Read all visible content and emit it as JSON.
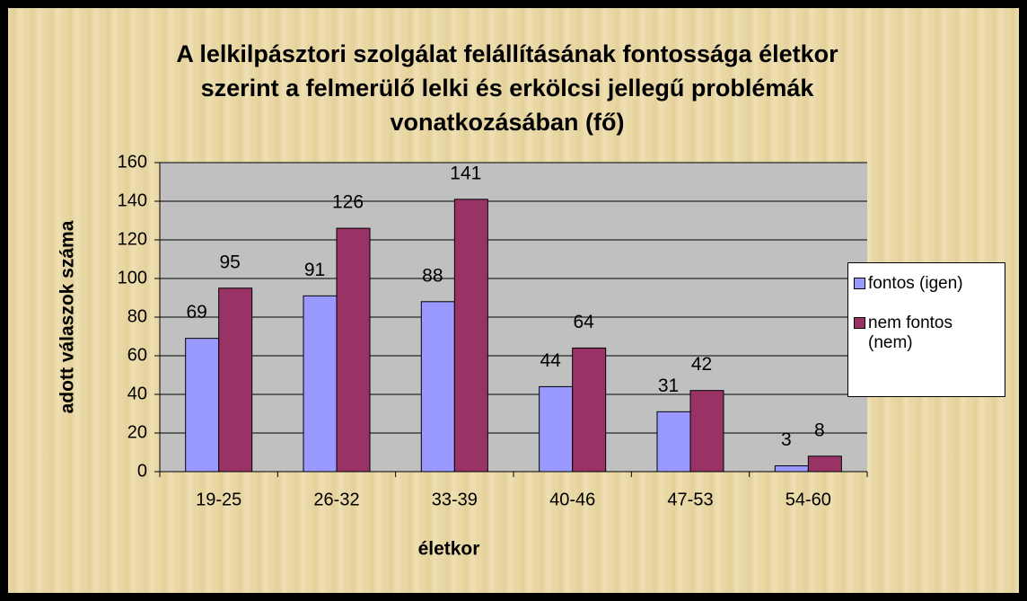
{
  "chart_data": {
    "type": "bar",
    "title": [
      "A lelkilpásztori szolgálat felállításának fontossága életkor",
      "szerint a felmerülő lelki és erkölcsi jellegű problémák",
      "vonatkozásában (fő)"
    ],
    "xlabel": "életkor",
    "ylabel": "adott válaszok száma",
    "categories": [
      "19-25",
      "26-32",
      "33-39",
      "40-46",
      "47-53",
      "54-60"
    ],
    "series": [
      {
        "name": "fontos (igen)",
        "color": "#9999ff",
        "values": [
          69,
          91,
          88,
          44,
          31,
          3
        ]
      },
      {
        "name": "nem fontos (nem)",
        "color": "#993366",
        "values": [
          95,
          126,
          141,
          64,
          42,
          8
        ]
      }
    ],
    "ylim": [
      0,
      160
    ],
    "yticks": [
      0,
      20,
      40,
      60,
      80,
      100,
      120,
      140,
      160
    ],
    "grid": true,
    "legend": "right"
  }
}
